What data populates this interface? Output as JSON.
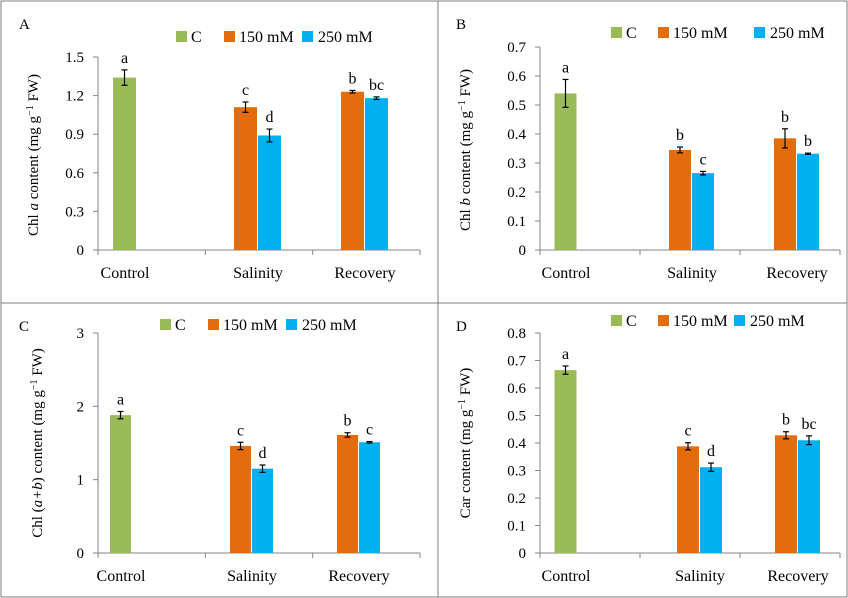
{
  "colors": {
    "C": "#9BBB59",
    "150 mM": "#E46C0A",
    "250 mM": "#00B0F0",
    "axis": "#868686",
    "border": "#7F7F7F"
  },
  "chart_data": [
    {
      "panel_label": "A",
      "type": "bar",
      "categories": [
        "Control",
        "Salinity",
        "Recovery"
      ],
      "ylabel_parts": [
        "Chl ",
        "a",
        " content (mg g",
        "−1",
        " FW)"
      ],
      "ylim": [
        0,
        1.5
      ],
      "yticks": [
        "0",
        "0.3",
        "0.6",
        "0.9",
        "1.2",
        "1.5"
      ],
      "grid": false,
      "legend_position": "top",
      "series": [
        {
          "name": "C",
          "values": [
            1.34,
            null,
            null
          ],
          "errors": [
            0.06,
            null,
            null
          ],
          "letters": [
            "a",
            null,
            null
          ]
        },
        {
          "name": "150 mM",
          "values": [
            null,
            1.11,
            1.23
          ],
          "errors": [
            null,
            0.04,
            0.01
          ],
          "letters": [
            null,
            "c",
            "b"
          ]
        },
        {
          "name": "250 mM",
          "values": [
            null,
            0.89,
            1.18
          ],
          "errors": [
            null,
            0.05,
            0.01
          ],
          "letters": [
            null,
            "d",
            "bc"
          ]
        }
      ]
    },
    {
      "panel_label": "B",
      "type": "bar",
      "categories": [
        "Control",
        "Salinity",
        "Recovery"
      ],
      "ylabel_parts": [
        "Chl ",
        "b",
        " content (mg g",
        "−1",
        " FW)"
      ],
      "ylim": [
        0,
        0.7
      ],
      "yticks": [
        "0",
        "0.1",
        "0.2",
        "0.3",
        "0.4",
        "0.5",
        "0.6",
        "0.7"
      ],
      "grid": false,
      "legend_position": "top",
      "series": [
        {
          "name": "C",
          "values": [
            0.54,
            null,
            null
          ],
          "errors": [
            0.048,
            null,
            null
          ],
          "letters": [
            "a",
            null,
            null
          ]
        },
        {
          "name": "150 mM",
          "values": [
            null,
            0.345,
            0.385
          ],
          "errors": [
            null,
            0.01,
            0.033
          ],
          "letters": [
            null,
            "b",
            "b"
          ]
        },
        {
          "name": "250 mM",
          "values": [
            null,
            0.265,
            0.332
          ],
          "errors": [
            null,
            0.006,
            0.002
          ],
          "letters": [
            null,
            "c",
            "b"
          ]
        }
      ]
    },
    {
      "panel_label": "C",
      "type": "bar",
      "categories": [
        "Control",
        "Salinity",
        "Recovery"
      ],
      "ylabel_parts": [
        "Chl (",
        "a+b",
        ")  content (mg g",
        "−1",
        " FW)"
      ],
      "ylim": [
        0,
        3
      ],
      "yticks": [
        "0",
        "1",
        "2",
        "3"
      ],
      "grid": false,
      "legend_position": "top",
      "series": [
        {
          "name": "C",
          "values": [
            1.88,
            null,
            null
          ],
          "errors": [
            0.05,
            null,
            null
          ],
          "letters": [
            "a",
            null,
            null
          ]
        },
        {
          "name": "150 mM",
          "values": [
            null,
            1.46,
            1.61
          ],
          "errors": [
            null,
            0.05,
            0.03
          ],
          "letters": [
            null,
            "c",
            "b"
          ]
        },
        {
          "name": "250 mM",
          "values": [
            null,
            1.15,
            1.51
          ],
          "errors": [
            null,
            0.05,
            0.01
          ],
          "letters": [
            null,
            "d",
            "c"
          ]
        }
      ]
    },
    {
      "panel_label": "D",
      "type": "bar",
      "categories": [
        "Control",
        "Salinity",
        "Recovery"
      ],
      "ylabel_parts": [
        "Car content (mg g",
        "−1",
        " FW)"
      ],
      "ylim": [
        0,
        0.8
      ],
      "yticks": [
        "0",
        "0.1",
        "0.2",
        "0.3",
        "0.4",
        "0.5",
        "0.6",
        "0.7",
        "0.8"
      ],
      "grid": false,
      "legend_position": "top",
      "series": [
        {
          "name": "C",
          "values": [
            0.665,
            null,
            null
          ],
          "errors": [
            0.015,
            null,
            null
          ],
          "letters": [
            "a",
            null,
            null
          ]
        },
        {
          "name": "150 mM",
          "values": [
            null,
            0.388,
            0.428
          ],
          "errors": [
            null,
            0.013,
            0.013
          ],
          "letters": [
            null,
            "c",
            "b"
          ]
        },
        {
          "name": "250 mM",
          "values": [
            null,
            0.312,
            0.41
          ],
          "errors": [
            null,
            0.015,
            0.016
          ],
          "letters": [
            null,
            "d",
            "bc"
          ]
        }
      ]
    }
  ]
}
